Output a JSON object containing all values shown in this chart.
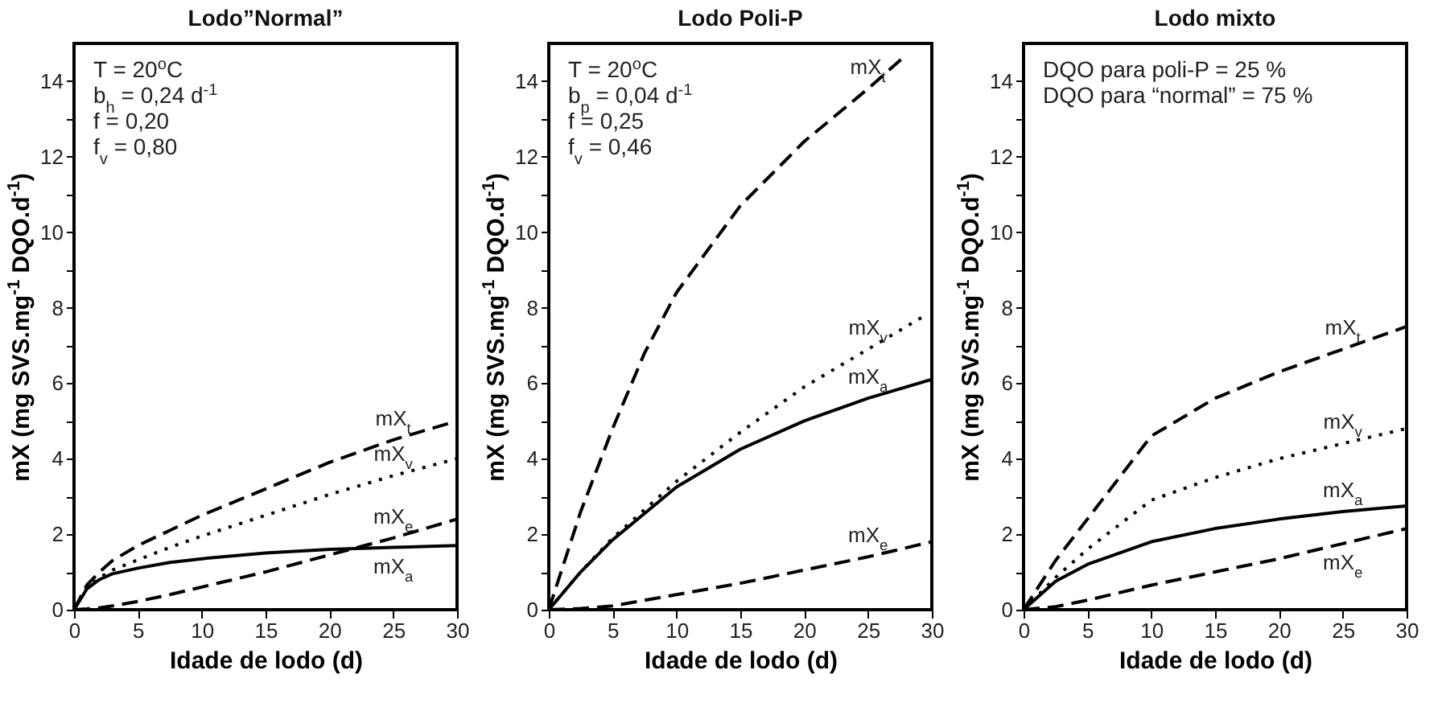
{
  "chart_data": [
    {
      "type": "line",
      "title": "Lodo”Normal”",
      "xlabel": "Idade de lodo (d)",
      "ylabel": "mX (mg SVS.mg$^{-1}$ DQO.d$^{-1}$)",
      "xlim": [
        0,
        30
      ],
      "xticks": [
        0,
        5,
        10,
        15,
        20,
        25,
        30
      ],
      "ylim": [
        0,
        15
      ],
      "yticks": [
        0,
        {
          "value": 1,
          "label": null
        },
        2,
        {
          "value": 3,
          "label": null
        },
        4,
        {
          "value": 5,
          "label": null
        },
        6,
        {
          "value": 7,
          "label": null
        },
        8,
        {
          "value": 9,
          "label": null
        },
        10,
        {
          "value": 11,
          "label": null
        },
        12,
        {
          "value": 13,
          "label": null
        },
        14
      ],
      "annotations": [
        "T = 20$^{o}$C",
        "b$_{h}$ = 0,24 d$^{-1}$",
        "f = 0,20",
        "f$_{v}$ = 0,80"
      ],
      "x": [
        0,
        1,
        2,
        3,
        5,
        7.5,
        10,
        15,
        20,
        25,
        30
      ],
      "series": [
        {
          "name": "mX$_{t}$",
          "color": "#000000",
          "line_style": "dashed",
          "values": [
            0,
            0.65,
            1.0,
            1.3,
            1.7,
            2.1,
            2.5,
            3.2,
            3.9,
            4.5,
            5.0
          ]
        },
        {
          "name": "mX$_{v}$",
          "color": "#000000",
          "line_style": "dotted",
          "values": [
            0,
            0.57,
            0.85,
            1.05,
            1.32,
            1.65,
            1.95,
            2.5,
            3.05,
            3.55,
            4.0
          ]
        },
        {
          "name": "mX$_{e}$",
          "color": "#000000",
          "line_style": "dashed",
          "values": [
            0,
            0.02,
            0.05,
            0.1,
            0.22,
            0.4,
            0.6,
            1.0,
            1.45,
            1.9,
            2.4
          ]
        },
        {
          "name": "mX$_{a}$",
          "color": "#000000",
          "line_style": "solid",
          "values": [
            0,
            0.55,
            0.8,
            0.95,
            1.1,
            1.25,
            1.35,
            1.5,
            1.6,
            1.65,
            1.7
          ]
        }
      ]
    },
    {
      "type": "line",
      "title": "Lodo Poli-P",
      "xlabel": "Idade de lodo (d)",
      "ylabel": "mX (mg SVS.mg$^{-1}$ DQO.d$^{-1}$)",
      "xlim": [
        0,
        30
      ],
      "xticks": [
        0,
        5,
        10,
        15,
        20,
        25,
        30
      ],
      "ylim": [
        0,
        15
      ],
      "yticks": [
        0,
        {
          "value": 1,
          "label": null
        },
        2,
        {
          "value": 3,
          "label": null
        },
        4,
        {
          "value": 5,
          "label": null
        },
        6,
        {
          "value": 7,
          "label": null
        },
        8,
        {
          "value": 9,
          "label": null
        },
        10,
        {
          "value": 11,
          "label": null
        },
        12,
        {
          "value": 13,
          "label": null
        },
        14
      ],
      "annotations": [
        "T = 20$^{o}$C",
        "b$_{p}$ = 0,04 d$^{-1}$",
        "f = 0,25",
        "f$_{v}$ = 0,46"
      ],
      "series": [
        {
          "name": "mX$_{t}$",
          "color": "#000000",
          "line_style": "dashed",
          "x": [
            0,
            2.5,
            5,
            7.5,
            10,
            15,
            20,
            25,
            28
          ],
          "values": [
            0,
            2.6,
            4.8,
            6.8,
            8.4,
            10.7,
            12.4,
            13.8,
            14.7
          ]
        },
        {
          "name": "mX$_{v}$",
          "color": "#000000",
          "line_style": "dotted",
          "x": [
            0,
            2.5,
            5,
            10,
            15,
            20,
            25,
            29.5
          ],
          "values": [
            0,
            1.0,
            1.9,
            3.4,
            4.7,
            5.9,
            6.9,
            7.8
          ]
        },
        {
          "name": "mX$_{a}$",
          "color": "#000000",
          "line_style": "solid",
          "x": [
            0,
            2.5,
            5,
            10,
            15,
            20,
            25,
            30
          ],
          "values": [
            0,
            1.0,
            1.85,
            3.25,
            4.25,
            5.0,
            5.6,
            6.1
          ]
        },
        {
          "name": "mX$_{e}$",
          "color": "#000000",
          "line_style": "dashed",
          "x": [
            0,
            2.5,
            5,
            10,
            15,
            20,
            25,
            30
          ],
          "values": [
            0,
            0.03,
            0.1,
            0.4,
            0.7,
            1.05,
            1.4,
            1.8
          ]
        }
      ]
    },
    {
      "type": "line",
      "title": "Lodo mixto",
      "xlabel": "Idade de lodo (d)",
      "ylabel": "mX (mg SVS.mg$^{-1}$ DQO.d$^{-1}$)",
      "xlim": [
        0,
        30
      ],
      "xticks": [
        0,
        5,
        10,
        15,
        20,
        25,
        30
      ],
      "ylim": [
        0,
        15
      ],
      "yticks": [
        0,
        {
          "value": 1,
          "label": null
        },
        2,
        {
          "value": 3,
          "label": null
        },
        4,
        {
          "value": 5,
          "label": null
        },
        6,
        {
          "value": 7,
          "label": null
        },
        8,
        {
          "value": 9,
          "label": null
        },
        10,
        {
          "value": 11,
          "label": null
        },
        12,
        {
          "value": 13,
          "label": null
        },
        14
      ],
      "annotations": [
        "DQO para poli-P = 25 %",
        "DQO para “normal” = 75 %"
      ],
      "x": [
        0,
        2.5,
        5,
        10,
        15,
        20,
        25,
        30
      ],
      "series": [
        {
          "name": "mX$_{t}$",
          "color": "#000000",
          "line_style": "dashed",
          "values": [
            0,
            1.3,
            2.4,
            4.6,
            5.6,
            6.3,
            6.9,
            7.5
          ]
        },
        {
          "name": "mX$_{v}$",
          "color": "#000000",
          "line_style": "dotted",
          "values": [
            0,
            0.85,
            1.6,
            2.9,
            3.5,
            4.0,
            4.4,
            4.8
          ]
        },
        {
          "name": "mX$_{a}$",
          "color": "#000000",
          "line_style": "solid",
          "values": [
            0,
            0.75,
            1.2,
            1.8,
            2.15,
            2.4,
            2.6,
            2.75
          ]
        },
        {
          "name": "mX$_{e}$",
          "color": "#000000",
          "line_style": "dashed",
          "values": [
            0,
            0.08,
            0.25,
            0.65,
            1.0,
            1.35,
            1.75,
            2.15
          ]
        }
      ]
    }
  ]
}
